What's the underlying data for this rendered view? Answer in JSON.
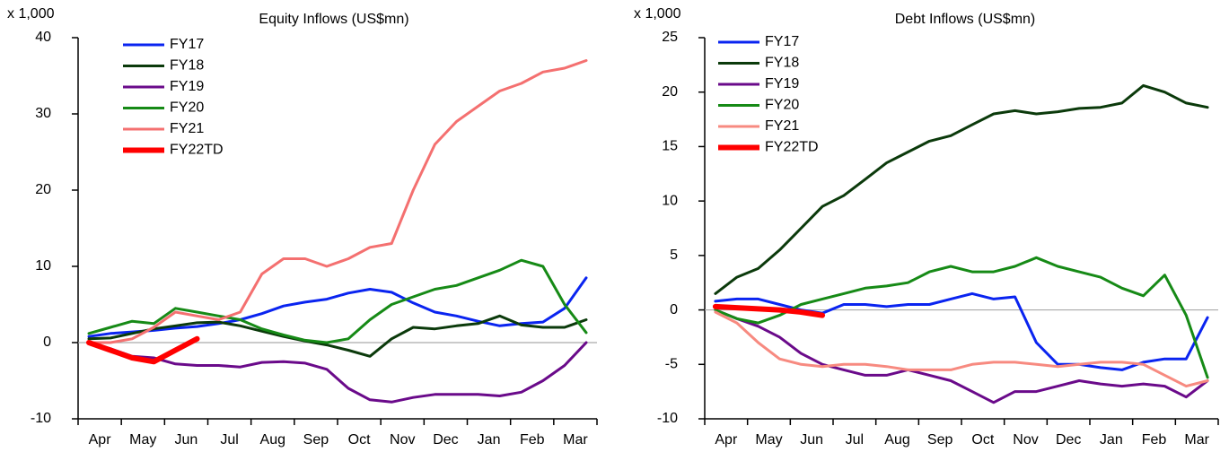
{
  "chart_data": [
    {
      "type": "line",
      "title": "Equity Inflows (US$mn)",
      "y_unit": "x 1,000",
      "categories": [
        "Apr",
        null,
        "May",
        null,
        "Jun",
        null,
        "Jul",
        null,
        "Aug",
        null,
        "Sep",
        null,
        "Oct",
        null,
        "Nov",
        null,
        "Dec",
        null,
        "Jan",
        null,
        "Feb",
        null,
        "Mar",
        null
      ],
      "ylim": [
        -10,
        40
      ],
      "yticks": [
        -10,
        0,
        10,
        20,
        30,
        40
      ],
      "series": [
        {
          "name": "FY17",
          "color": "#0a24f0",
          "width": 3,
          "values": [
            0.8,
            1.2,
            1.4,
            1.6,
            1.9,
            2.1,
            2.5,
            3,
            3.8,
            4.8,
            5.3,
            5.7,
            6.5,
            7,
            6.6,
            5.2,
            4,
            3.5,
            2.8,
            2.2,
            2.5,
            2.7,
            4.5,
            8.5
          ]
        },
        {
          "name": "FY18",
          "color": "#0b3a0b",
          "width": 3,
          "values": [
            0.5,
            0.6,
            1.2,
            1.8,
            2.2,
            2.6,
            2.7,
            2.2,
            1.5,
            0.8,
            0.2,
            -0.3,
            -1,
            -1.8,
            0.5,
            2,
            1.8,
            2.2,
            2.5,
            3.5,
            2.3,
            2,
            2,
            3
          ]
        },
        {
          "name": "FY19",
          "color": "#6a0a8a",
          "width": 3,
          "values": [
            0,
            -0.8,
            -1.8,
            -2,
            -2.8,
            -3,
            -3,
            -3.2,
            -2.6,
            -2.5,
            -2.7,
            -3.5,
            -6,
            -7.5,
            -7.8,
            -7.2,
            -6.8,
            -6.8,
            -6.8,
            -7,
            -6.5,
            -5,
            -3,
            0
          ]
        },
        {
          "name": "FY20",
          "color": "#168a16",
          "width": 3,
          "values": [
            1.2,
            2,
            2.8,
            2.5,
            4.5,
            4,
            3.5,
            3,
            1.8,
            1,
            0.3,
            0,
            0.5,
            3,
            5,
            6,
            7,
            7.5,
            8.5,
            9.5,
            10.8,
            10,
            5,
            1.3
          ]
        },
        {
          "name": "FY21",
          "color": "#f47070",
          "width": 3,
          "values": [
            0,
            0,
            0.5,
            2,
            4,
            3.5,
            3,
            4,
            9,
            11,
            11,
            10,
            11,
            12.5,
            13,
            20,
            26,
            29,
            31,
            33,
            34,
            35.5,
            36,
            37
          ]
        },
        {
          "name": "FY22TD",
          "color": "#ff0000",
          "width": 6,
          "values": [
            0,
            -1,
            -2,
            -2.5,
            -1,
            0.5,
            null,
            null,
            null,
            null,
            null,
            null,
            null,
            null,
            null,
            null,
            null,
            null,
            null,
            null,
            null,
            null,
            null,
            null
          ]
        }
      ]
    },
    {
      "type": "line",
      "title": "Debt Inflows (US$mn)",
      "y_unit": "x 1,000",
      "categories": [
        "Apr",
        null,
        "May",
        null,
        "Jun",
        null,
        "Jul",
        null,
        "Aug",
        null,
        "Sep",
        null,
        "Oct",
        null,
        "Nov",
        null,
        "Dec",
        null,
        "Jan",
        null,
        "Feb",
        null,
        "Mar",
        null
      ],
      "ylim": [
        -10,
        25
      ],
      "yticks": [
        -10,
        -5,
        0,
        5,
        10,
        15,
        20,
        25
      ],
      "series": [
        {
          "name": "FY17",
          "color": "#0a24f0",
          "width": 3,
          "values": [
            0.8,
            1,
            1,
            0.5,
            0,
            -0.3,
            0.5,
            0.5,
            0.3,
            0.5,
            0.5,
            1,
            1.5,
            1,
            1.2,
            -3,
            -5,
            -5,
            -5.3,
            -5.5,
            -4.8,
            -4.5,
            -4.5,
            -0.7
          ]
        },
        {
          "name": "FY18",
          "color": "#0b3a0b",
          "width": 3,
          "values": [
            1.5,
            3,
            3.8,
            5.5,
            7.5,
            9.5,
            10.5,
            12,
            13.5,
            14.5,
            15.5,
            16,
            17,
            18,
            18.3,
            18,
            18.2,
            18.5,
            18.6,
            19,
            20.6,
            20,
            19,
            18.6
          ]
        },
        {
          "name": "FY19",
          "color": "#6a0a8a",
          "width": 3,
          "values": [
            0,
            -0.8,
            -1.5,
            -2.5,
            -4,
            -5,
            -5.5,
            -6,
            -6,
            -5.5,
            -6,
            -6.5,
            -7.5,
            -8.5,
            -7.5,
            -7.5,
            -7,
            -6.5,
            -6.8,
            -7,
            -6.8,
            -7,
            -8,
            -6.5
          ]
        },
        {
          "name": "FY20",
          "color": "#168a16",
          "width": 3,
          "values": [
            0,
            -0.8,
            -1.2,
            -0.5,
            0.5,
            1,
            1.5,
            2,
            2.2,
            2.5,
            3.5,
            4,
            3.5,
            3.5,
            4,
            4.8,
            4,
            3.5,
            3,
            2,
            1.3,
            3.2,
            -0.5,
            -6.2
          ]
        },
        {
          "name": "FY21",
          "color": "#f78a80",
          "width": 3,
          "values": [
            -0.2,
            -1.2,
            -3,
            -4.5,
            -5,
            -5.2,
            -5,
            -5,
            -5.2,
            -5.5,
            -5.5,
            -5.5,
            -5,
            -4.8,
            -4.8,
            -5,
            -5.2,
            -5,
            -4.8,
            -4.8,
            -5,
            -6,
            -7,
            -6.5
          ]
        },
        {
          "name": "FY22TD",
          "color": "#ff0000",
          "width": 6,
          "values": [
            0.3,
            0.2,
            0.1,
            0,
            -0.2,
            -0.5,
            null,
            null,
            null,
            null,
            null,
            null,
            null,
            null,
            null,
            null,
            null,
            null,
            null,
            null,
            null,
            null,
            null,
            null
          ]
        }
      ]
    }
  ]
}
